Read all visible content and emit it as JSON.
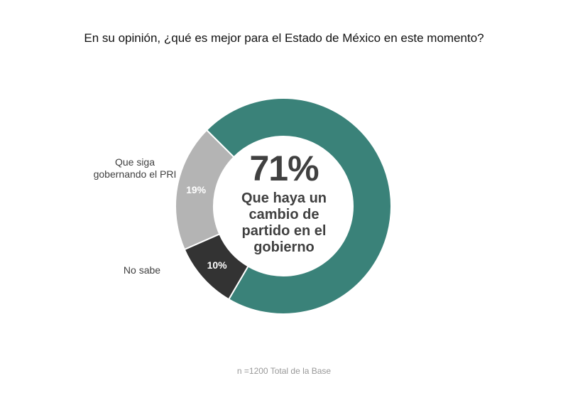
{
  "colors": {
    "cambio": "#3a8279",
    "pri": "#b4b4b4",
    "no_sabe": "#333333",
    "center_text": "#404040",
    "footnote": "#999999"
  },
  "chart_data": {
    "type": "pie",
    "style": "donut",
    "title": "En su opinión, ¿qué es mejor para el Estado de México en este momento?",
    "slices": [
      {
        "label": "Que haya un cambio de partido en el gobierno",
        "value": 71,
        "value_label": "71%",
        "color": "#3a8279"
      },
      {
        "label": "No sabe",
        "value": 10,
        "value_label": "10%",
        "color": "#333333"
      },
      {
        "label": "Que siga gobernando el PRI",
        "value": 19,
        "value_label": "19%",
        "color": "#b4b4b4"
      }
    ],
    "center": {
      "value_label": "71%",
      "text": "Que haya un cambio de partido en el gobierno"
    },
    "note": "n =1200 Total de la Base"
  }
}
